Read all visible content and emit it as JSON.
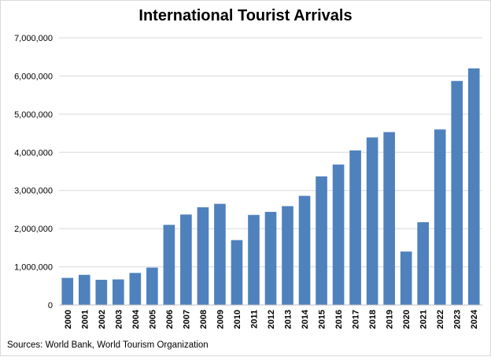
{
  "chart_data": {
    "type": "bar",
    "title": "International Tourist Arrivals",
    "source": "Sources: World Bank, World Tourism Organization",
    "xlabel": "",
    "ylabel": "",
    "ylim": [
      0,
      7000000
    ],
    "yticks": [
      0,
      1000000,
      2000000,
      3000000,
      4000000,
      5000000,
      6000000,
      7000000
    ],
    "ytick_labels": [
      "0",
      "1,000,000",
      "2,000,000",
      "3,000,000",
      "4,000,000",
      "5,000,000",
      "6,000,000",
      "7,000,000"
    ],
    "grid": true,
    "legend": "none",
    "bar_color": "#4f81bd",
    "categories": [
      "2000",
      "2001",
      "2002",
      "2003",
      "2004",
      "2005",
      "2006",
      "2007",
      "2008",
      "2009",
      "2010",
      "2011",
      "2012",
      "2013",
      "2014",
      "2015",
      "2016",
      "2017",
      "2018",
      "2019",
      "2020",
      "2021",
      "2022",
      "2023",
      "2024"
    ],
    "values": [
      710000,
      790000,
      660000,
      670000,
      840000,
      980000,
      2100000,
      2370000,
      2560000,
      2650000,
      1700000,
      2360000,
      2440000,
      2590000,
      2860000,
      3370000,
      3680000,
      4050000,
      4390000,
      4530000,
      1400000,
      2170000,
      4600000,
      5870000,
      6200000
    ]
  }
}
